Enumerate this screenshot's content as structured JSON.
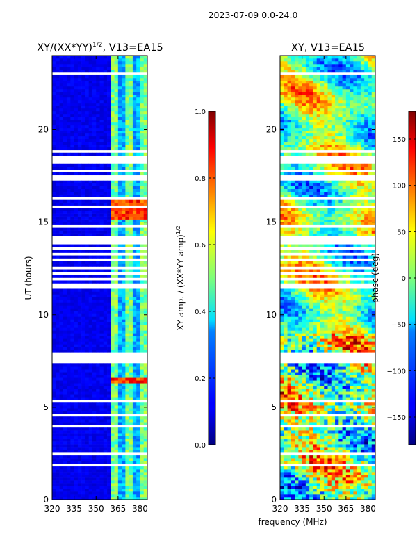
{
  "figure_title": "2023-07-09 0.0-24.0",
  "x_label": "frequency (MHz)",
  "y_label": "UT (hours)",
  "chart_data": [
    {
      "type": "heatmap",
      "title": "XY/(XX*YY)",
      "title_exponent": "1/2",
      "title_suffix": ", V13=EA15",
      "x_ticks": [
        "320",
        "335",
        "350",
        "365",
        "380"
      ],
      "y_ticks": [
        "0",
        "5",
        "10",
        "15",
        "20"
      ],
      "xlim": [
        320,
        385
      ],
      "ylim": [
        0,
        24
      ],
      "colormap": "jet",
      "colorbar": {
        "label_prefix": "XY amp. / (XX*YY amp)",
        "label_exponent": "1/2",
        "range": [
          0.0,
          1.0
        ],
        "ticks": [
          "0.0",
          "0.2",
          "0.4",
          "0.6",
          "0.8",
          "1.0"
        ]
      }
    },
    {
      "type": "heatmap",
      "title": "XY, V13=EA15",
      "x_ticks": [
        "320",
        "335",
        "350",
        "365",
        "380"
      ],
      "y_ticks": [
        "0",
        "5",
        "10",
        "15",
        "20"
      ],
      "xlim": [
        320,
        385
      ],
      "ylim": [
        0,
        24
      ],
      "colormap": "jet",
      "colorbar": {
        "label": "phase (deg)",
        "range": [
          -180,
          180
        ],
        "ticks": [
          "−150",
          "−100",
          "−50",
          "0",
          "50",
          "100",
          "150"
        ]
      }
    }
  ]
}
